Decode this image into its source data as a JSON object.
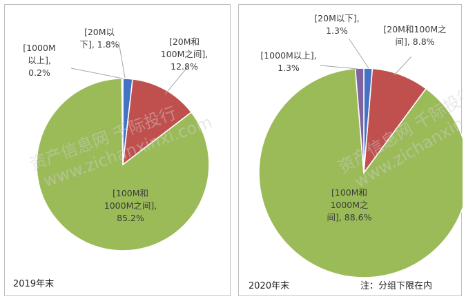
{
  "chart_data": [
    {
      "type": "pie",
      "caption": "2019年末",
      "slices": [
        {
          "label_lines": [
            "[20M以",
            "下], 1.8%"
          ],
          "value": 1.8,
          "color": "#4472c4"
        },
        {
          "label_lines": [
            "[20M和",
            "100M之间],",
            "12.8%"
          ],
          "value": 12.8,
          "color": "#c0504d"
        },
        {
          "label_lines": [
            "[100M和",
            "1000M之间],",
            "85.2%"
          ],
          "value": 85.2,
          "color": "#9bbb59"
        },
        {
          "label_lines": [
            "[1000M",
            "以上],",
            "0.2%"
          ],
          "value": 0.2,
          "color": "#8064a2"
        }
      ]
    },
    {
      "type": "pie",
      "caption": "2020年末",
      "note": "注：分组下限在内",
      "slices": [
        {
          "label_lines": [
            "[20M以下],",
            "1.3%"
          ],
          "value": 1.3,
          "color": "#4472c4"
        },
        {
          "label_lines": [
            "[20M和100M之",
            "间], 8.8%"
          ],
          "value": 8.8,
          "color": "#c0504d"
        },
        {
          "label_lines": [
            "[100M和",
            "1000M之",
            "间], 88.6%"
          ],
          "value": 88.6,
          "color": "#9bbb59"
        },
        {
          "label_lines": [
            "[1000M以上],",
            "1.3%"
          ],
          "value": 1.3,
          "color": "#8064a2"
        }
      ]
    }
  ],
  "watermark": {
    "line1": "资产信息网 千际投行",
    "line2": "www.zichanxinxi.com"
  }
}
